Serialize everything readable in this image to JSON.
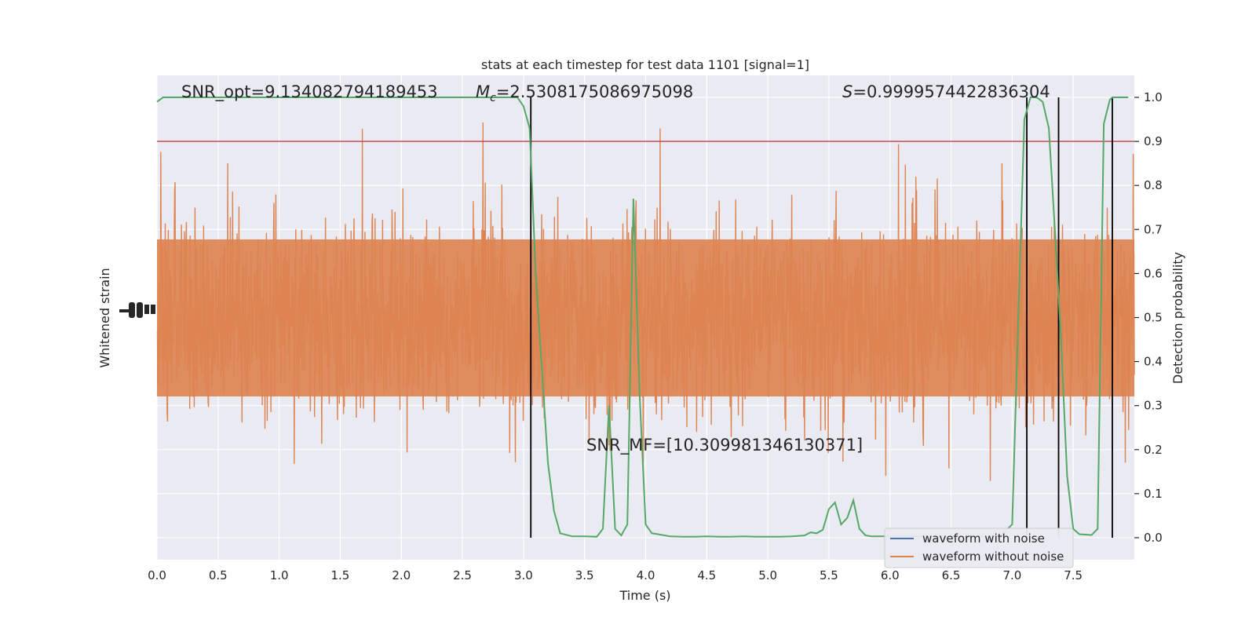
{
  "chart_data": {
    "type": "line",
    "title": "stats at each timestep for test data 1101 [signal=1]",
    "xlabel": "Time (s)",
    "ylabel_left": "Whitened strain",
    "ylabel_right": "Detection probability",
    "xlim": [
      0.0,
      8.0
    ],
    "ylim_right": [
      -0.05,
      1.05
    ],
    "xticks": [
      0.0,
      0.5,
      1.0,
      1.5,
      2.0,
      2.5,
      3.0,
      3.5,
      4.0,
      4.5,
      5.0,
      5.5,
      6.0,
      6.5,
      7.0,
      7.5
    ],
    "xtick_labels": [
      "0.0",
      "0.5",
      "1.0",
      "1.5",
      "2.0",
      "2.5",
      "3.0",
      "3.5",
      "4.0",
      "4.5",
      "5.0",
      "5.5",
      "6.0",
      "6.5",
      "7.0",
      "7.5"
    ],
    "yticks_right": [
      0.0,
      0.1,
      0.2,
      0.3,
      0.4,
      0.5,
      0.6,
      0.7,
      0.8,
      0.9,
      1.0
    ],
    "ytick_labels_right": [
      "0.0",
      "0.1",
      "0.2",
      "0.3",
      "0.4",
      "0.5",
      "0.6",
      "0.7",
      "0.8",
      "0.9",
      "1.0"
    ],
    "grid": true,
    "legend_placement": "lower-right",
    "threshold": 0.9,
    "event_lines_x": [
      3.06,
      7.12,
      7.38,
      7.82
    ],
    "annotations": {
      "snr_opt": "SNR_opt=9.134082794189453",
      "mc_symbol": "M",
      "mc_sub": "c",
      "mc_value": "=2.5308175086975098",
      "s_symbol": "S",
      "s_value": "=0.9999574422836304",
      "snr_mf": "SNR_MF=[10.309981346130371]"
    },
    "legend": [
      "waveform with noise",
      "waveform without noise"
    ],
    "series": [
      {
        "name": "waveform with noise",
        "color": "#4c72b0",
        "style": "noise"
      },
      {
        "name": "waveform without noise",
        "color": "#dd8452",
        "style": "noise"
      },
      {
        "color": "#55a868",
        "x": [
          0.0,
          0.05,
          0.1,
          0.2,
          0.4,
          0.6,
          0.8,
          1.0,
          1.2,
          1.4,
          1.6,
          1.8,
          2.0,
          2.2,
          2.4,
          2.6,
          2.8,
          2.9,
          2.95,
          3.0,
          3.05,
          3.1,
          3.2,
          3.25,
          3.3,
          3.4,
          3.5,
          3.6,
          3.65,
          3.7,
          3.75,
          3.8,
          3.85,
          3.9,
          3.95,
          4.0,
          4.05,
          4.1,
          4.2,
          4.3,
          4.4,
          4.5,
          4.6,
          4.7,
          4.8,
          4.9,
          5.0,
          5.1,
          5.2,
          5.3,
          5.35,
          5.4,
          5.45,
          5.5,
          5.55,
          5.6,
          5.65,
          5.7,
          5.75,
          5.8,
          5.85,
          5.9,
          6.0,
          6.2,
          6.4,
          6.6,
          6.8,
          6.9,
          7.0,
          7.05,
          7.1,
          7.15,
          7.2,
          7.25,
          7.3,
          7.35,
          7.4,
          7.45,
          7.5,
          7.55,
          7.6,
          7.65,
          7.7,
          7.75,
          7.8,
          7.82,
          7.85,
          7.88,
          7.9,
          7.95
        ],
        "y": [
          0.99,
          1.0,
          1.0,
          1.0,
          1.0,
          1.0,
          1.0,
          1.0,
          1.0,
          1.0,
          1.0,
          1.0,
          1.0,
          1.0,
          1.0,
          1.0,
          1.0,
          1.0,
          1.0,
          0.98,
          0.93,
          0.6,
          0.17,
          0.06,
          0.01,
          0.003,
          0.003,
          0.002,
          0.02,
          0.3,
          0.02,
          0.005,
          0.03,
          0.77,
          0.33,
          0.03,
          0.01,
          0.008,
          0.003,
          0.002,
          0.002,
          0.003,
          0.002,
          0.002,
          0.003,
          0.002,
          0.002,
          0.002,
          0.003,
          0.005,
          0.012,
          0.01,
          0.018,
          0.065,
          0.08,
          0.03,
          0.045,
          0.085,
          0.02,
          0.005,
          0.003,
          0.003,
          0.003,
          0.003,
          0.003,
          0.003,
          0.003,
          0.003,
          0.03,
          0.5,
          0.95,
          1.0,
          1.0,
          0.99,
          0.93,
          0.7,
          0.45,
          0.14,
          0.02,
          0.008,
          0.007,
          0.006,
          0.02,
          0.94,
          0.995,
          1.0,
          1.0,
          1.0,
          1.0,
          1.0
        ]
      }
    ]
  }
}
